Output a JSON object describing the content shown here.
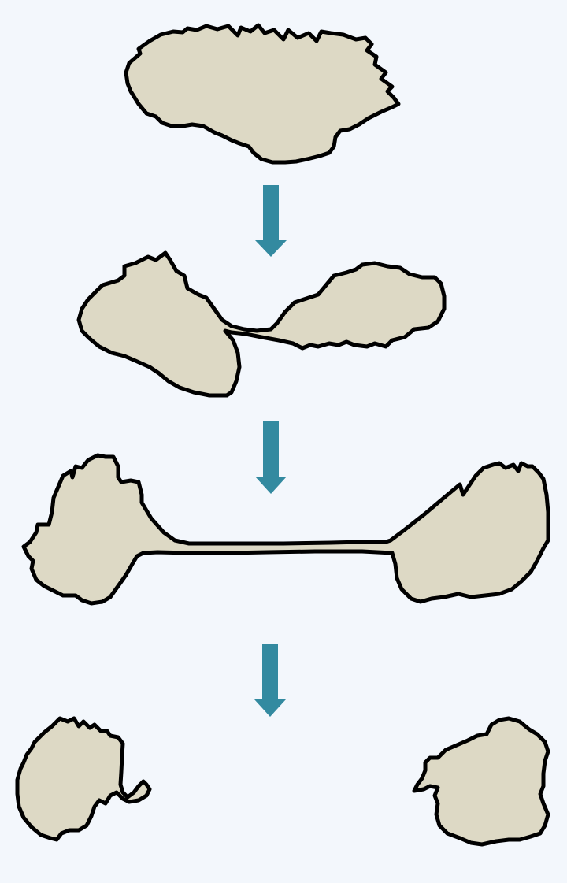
{
  "colors": {
    "background": "#f3f7fc",
    "blob_fill": "#ddd9c5",
    "blob_stroke": "#000000",
    "arrow": "#338aa0"
  },
  "stages": [
    {
      "name": "single-cell",
      "arrow_after": true
    },
    {
      "name": "splitting-cell",
      "arrow_after": true
    },
    {
      "name": "stretched-cell",
      "arrow_after": true
    },
    {
      "name": "separated-cells",
      "arrow_after": false
    }
  ]
}
